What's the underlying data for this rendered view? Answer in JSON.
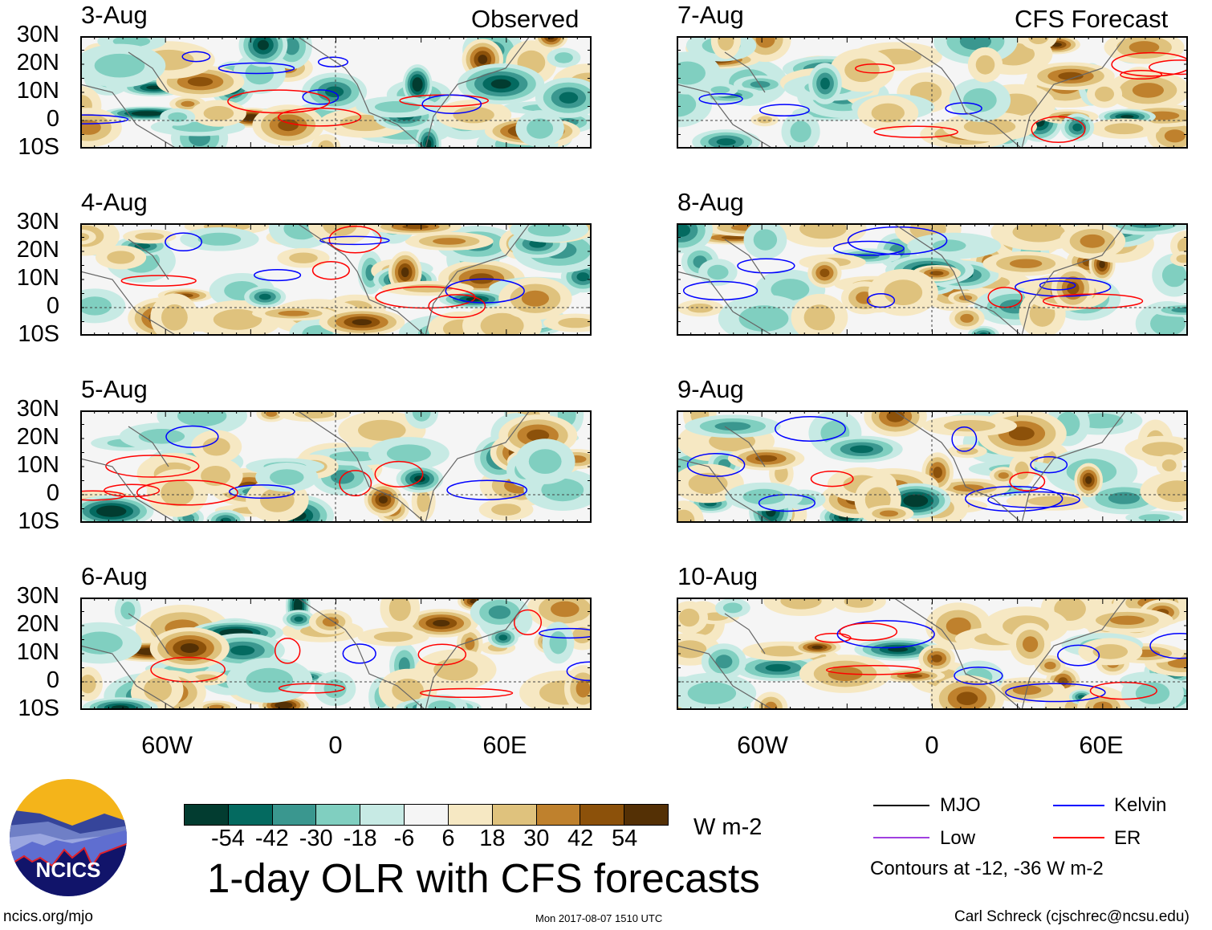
{
  "header": {
    "left_label": "Observed",
    "right_label": "CFS Forecast"
  },
  "panels": {
    "left": [
      {
        "date": "3-Aug"
      },
      {
        "date": "4-Aug"
      },
      {
        "date": "5-Aug"
      },
      {
        "date": "6-Aug"
      }
    ],
    "right": [
      {
        "date": "7-Aug"
      },
      {
        "date": "8-Aug"
      },
      {
        "date": "9-Aug"
      },
      {
        "date": "10-Aug"
      }
    ]
  },
  "axes": {
    "lat_ticks": [
      "30N",
      "20N",
      "10N",
      "0",
      "10S"
    ],
    "lon_ticks": [
      "60W",
      "0",
      "60E"
    ]
  },
  "colorbar": {
    "unit": "W m-2",
    "labels": [
      "-54",
      "-42",
      "-30",
      "-18",
      "-6",
      "6",
      "18",
      "30",
      "42",
      "54"
    ],
    "colors": [
      "#023c30",
      "#046a60",
      "#3a978f",
      "#80cfc0",
      "#c7eae4",
      "#f5f5f5",
      "#f6e8c3",
      "#dfc27d",
      "#bf812d",
      "#8c510a",
      "#543005"
    ]
  },
  "legend": {
    "items": [
      {
        "label": "MJO",
        "color": "#000000"
      },
      {
        "label": "Kelvin",
        "color": "#0000ff"
      },
      {
        "label": "Low",
        "color": "#a040e0"
      },
      {
        "label": "ER",
        "color": "#ff0000"
      }
    ],
    "note": "Contours at -12, -36 W m-2"
  },
  "logo": {
    "text": "NCICS"
  },
  "title": "1-day OLR with CFS forecasts",
  "footer": {
    "url": "ncics.org/mjo",
    "timestamp": "Mon 2017-08-07 1510 UTC",
    "credit": "Carl Schreck (cjschrec@ncsu.edu)"
  }
}
